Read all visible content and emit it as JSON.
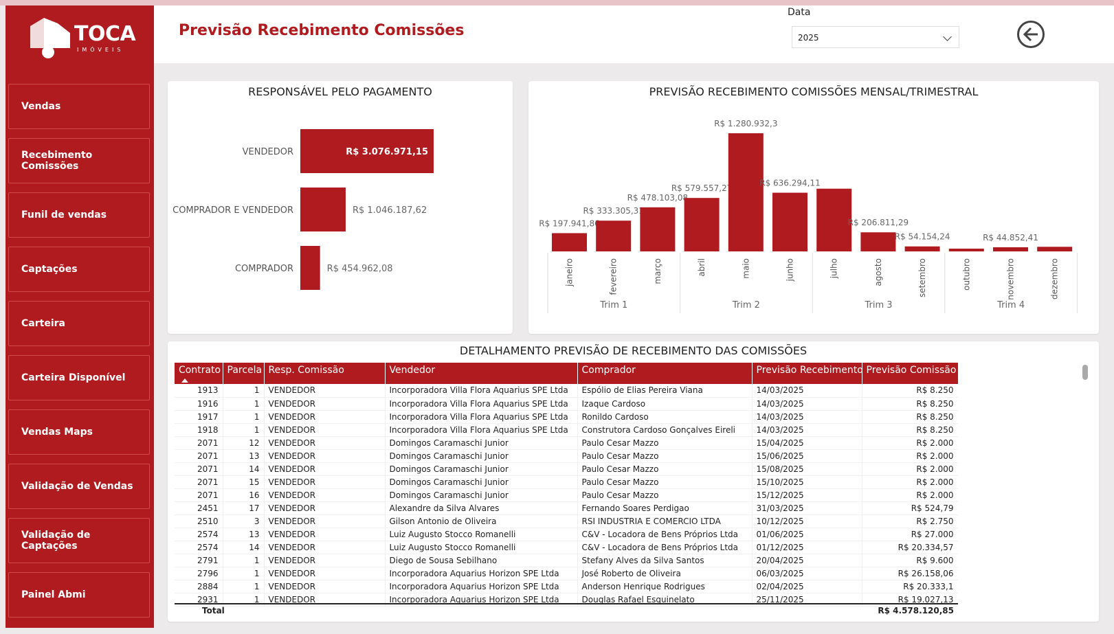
{
  "brand": {
    "name": "TOCA",
    "sub": "IMÓVEIS"
  },
  "sidebar": {
    "items": [
      {
        "label": "Vendas"
      },
      {
        "label": "Recebimento Comissões"
      },
      {
        "label": "Funil de vendas"
      },
      {
        "label": "Captações"
      },
      {
        "label": "Carteira"
      },
      {
        "label": "Carteira Disponível"
      },
      {
        "label": "Vendas Maps"
      },
      {
        "label": "Validação de Vendas"
      },
      {
        "label": "Validação de Captações"
      },
      {
        "label": "Painel Abmi"
      }
    ]
  },
  "header": {
    "title": "Previsão Recebimento Comissões",
    "filter_label": "Data",
    "filter_value": "2025"
  },
  "colors": {
    "accent": "#b01b1f"
  },
  "chart_data": [
    {
      "type": "bar",
      "orientation": "horizontal",
      "title": "RESPONSÁVEL PELO PAGAMENTO",
      "categories": [
        "VENDEDOR",
        "COMPRADOR E VENDEDOR",
        "COMPRADOR"
      ],
      "values": [
        3076971.15,
        1046187.62,
        454962.08
      ],
      "labels": [
        "R$ 3.076.971,15",
        "R$ 1.046.187,62",
        "R$ 454.962,08"
      ]
    },
    {
      "type": "bar",
      "title": "PREVISÃO RECEBIMENTO COMISSÕES MENSAL/TRIMESTRAL",
      "categories": [
        "janeiro",
        "fevereiro",
        "março",
        "abril",
        "maio",
        "junho",
        "julho",
        "agosto",
        "setembro",
        "outubro",
        "novembro",
        "dezembro"
      ],
      "groups": [
        "Trim 1",
        "Trim 2",
        "Trim 3",
        "Trim 4"
      ],
      "values": [
        197941.86,
        333305.31,
        478103.08,
        579557.27,
        1280932.3,
        636294.11,
        680000,
        206811.29,
        54154.24,
        30000,
        44852.41,
        50000
      ],
      "labels": [
        "R$ 197.941,86",
        "R$ 333.305,31",
        "R$ 478.103,08",
        "R$ 579.557,27",
        "R$ 1.280.932,3",
        "R$ 636.294,11",
        "",
        "R$ 206.811,29",
        "R$ 54.154,24",
        "",
        "R$ 44.852,41",
        ""
      ]
    }
  ],
  "table": {
    "title": "DETALHAMENTO PREVISÃO DE RECEBIMENTO DAS COMISSÕES",
    "columns": [
      "Contrato",
      "Parcela",
      "Resp. Comissão",
      "Vendedor",
      "Comprador",
      "Previsão Recebimento",
      "Previsão Comissão"
    ],
    "rows": [
      [
        "1913",
        "1",
        "VENDEDOR",
        "Incorporadora Villa Flora Aquarius SPE Ltda",
        "Espólio de Elias Pereira Viana",
        "14/03/2025",
        "R$ 8.250"
      ],
      [
        "1916",
        "1",
        "VENDEDOR",
        "Incorporadora Villa Flora Aquarius SPE Ltda",
        "Izaque Cardoso",
        "14/03/2025",
        "R$ 8.250"
      ],
      [
        "1917",
        "1",
        "VENDEDOR",
        "Incorporadora Villa Flora Aquarius SPE Ltda",
        "Ronildo Cardoso",
        "14/03/2025",
        "R$ 8.250"
      ],
      [
        "1918",
        "1",
        "VENDEDOR",
        "Incorporadora Villa Flora Aquarius SPE Ltda",
        "Construtora Cardoso Gonçalves Eireli",
        "14/03/2025",
        "R$ 8.250"
      ],
      [
        "2071",
        "12",
        "VENDEDOR",
        "Domingos Caramaschi Junior",
        "Paulo Cesar Mazzo",
        "15/04/2025",
        "R$ 2.000"
      ],
      [
        "2071",
        "13",
        "VENDEDOR",
        "Domingos Caramaschi Junior",
        "Paulo Cesar Mazzo",
        "15/06/2025",
        "R$ 2.000"
      ],
      [
        "2071",
        "14",
        "VENDEDOR",
        "Domingos Caramaschi Junior",
        "Paulo Cesar Mazzo",
        "15/08/2025",
        "R$ 2.000"
      ],
      [
        "2071",
        "15",
        "VENDEDOR",
        "Domingos Caramaschi Junior",
        "Paulo Cesar Mazzo",
        "15/10/2025",
        "R$ 2.000"
      ],
      [
        "2071",
        "16",
        "VENDEDOR",
        "Domingos Caramaschi Junior",
        "Paulo Cesar Mazzo",
        "15/12/2025",
        "R$ 2.000"
      ],
      [
        "2451",
        "17",
        "VENDEDOR",
        "Alexandre da Silva Alvares",
        "Fernando Soares Perdigao",
        "31/03/2025",
        "R$ 524,79"
      ],
      [
        "2510",
        "3",
        "VENDEDOR",
        "Gilson Antonio de Oliveira",
        "RSI INDUSTRIA E COMERCIO LTDA",
        "10/12/2025",
        "R$ 2.750"
      ],
      [
        "2574",
        "13",
        "VENDEDOR",
        "Luiz Augusto Stocco Romanelli",
        "C&V - Locadora de Bens Próprios Ltda",
        "01/06/2025",
        "R$ 27.000"
      ],
      [
        "2574",
        "14",
        "VENDEDOR",
        "Luiz Augusto Stocco Romanelli",
        "C&V - Locadora de Bens Próprios Ltda",
        "01/12/2025",
        "R$ 20.334,57"
      ],
      [
        "2791",
        "1",
        "VENDEDOR",
        "Diego de Sousa Sebilhano",
        "Stefany Alves da Silva Santos",
        "20/04/2025",
        "R$ 9.600"
      ],
      [
        "2796",
        "1",
        "VENDEDOR",
        "Incorporadora Aquarius Horizon SPE Ltda",
        "José Roberto de Oliveira",
        "06/03/2025",
        "R$ 26.158,06"
      ],
      [
        "2884",
        "1",
        "VENDEDOR",
        "Incorporadora Aquarius Horizon SPE Ltda",
        "Anderson Henrique Rodrigues",
        "02/04/2025",
        "R$ 20.333,1"
      ],
      [
        "2931",
        "1",
        "VENDEDOR",
        "Incorporadora Aquarius Horizon SPE Ltda",
        "Douglas Rafael Esquinelato",
        "25/11/2025",
        "R$ 19.027,13"
      ]
    ],
    "total_label": "Total",
    "total_value": "R$ 4.578.120,85"
  }
}
